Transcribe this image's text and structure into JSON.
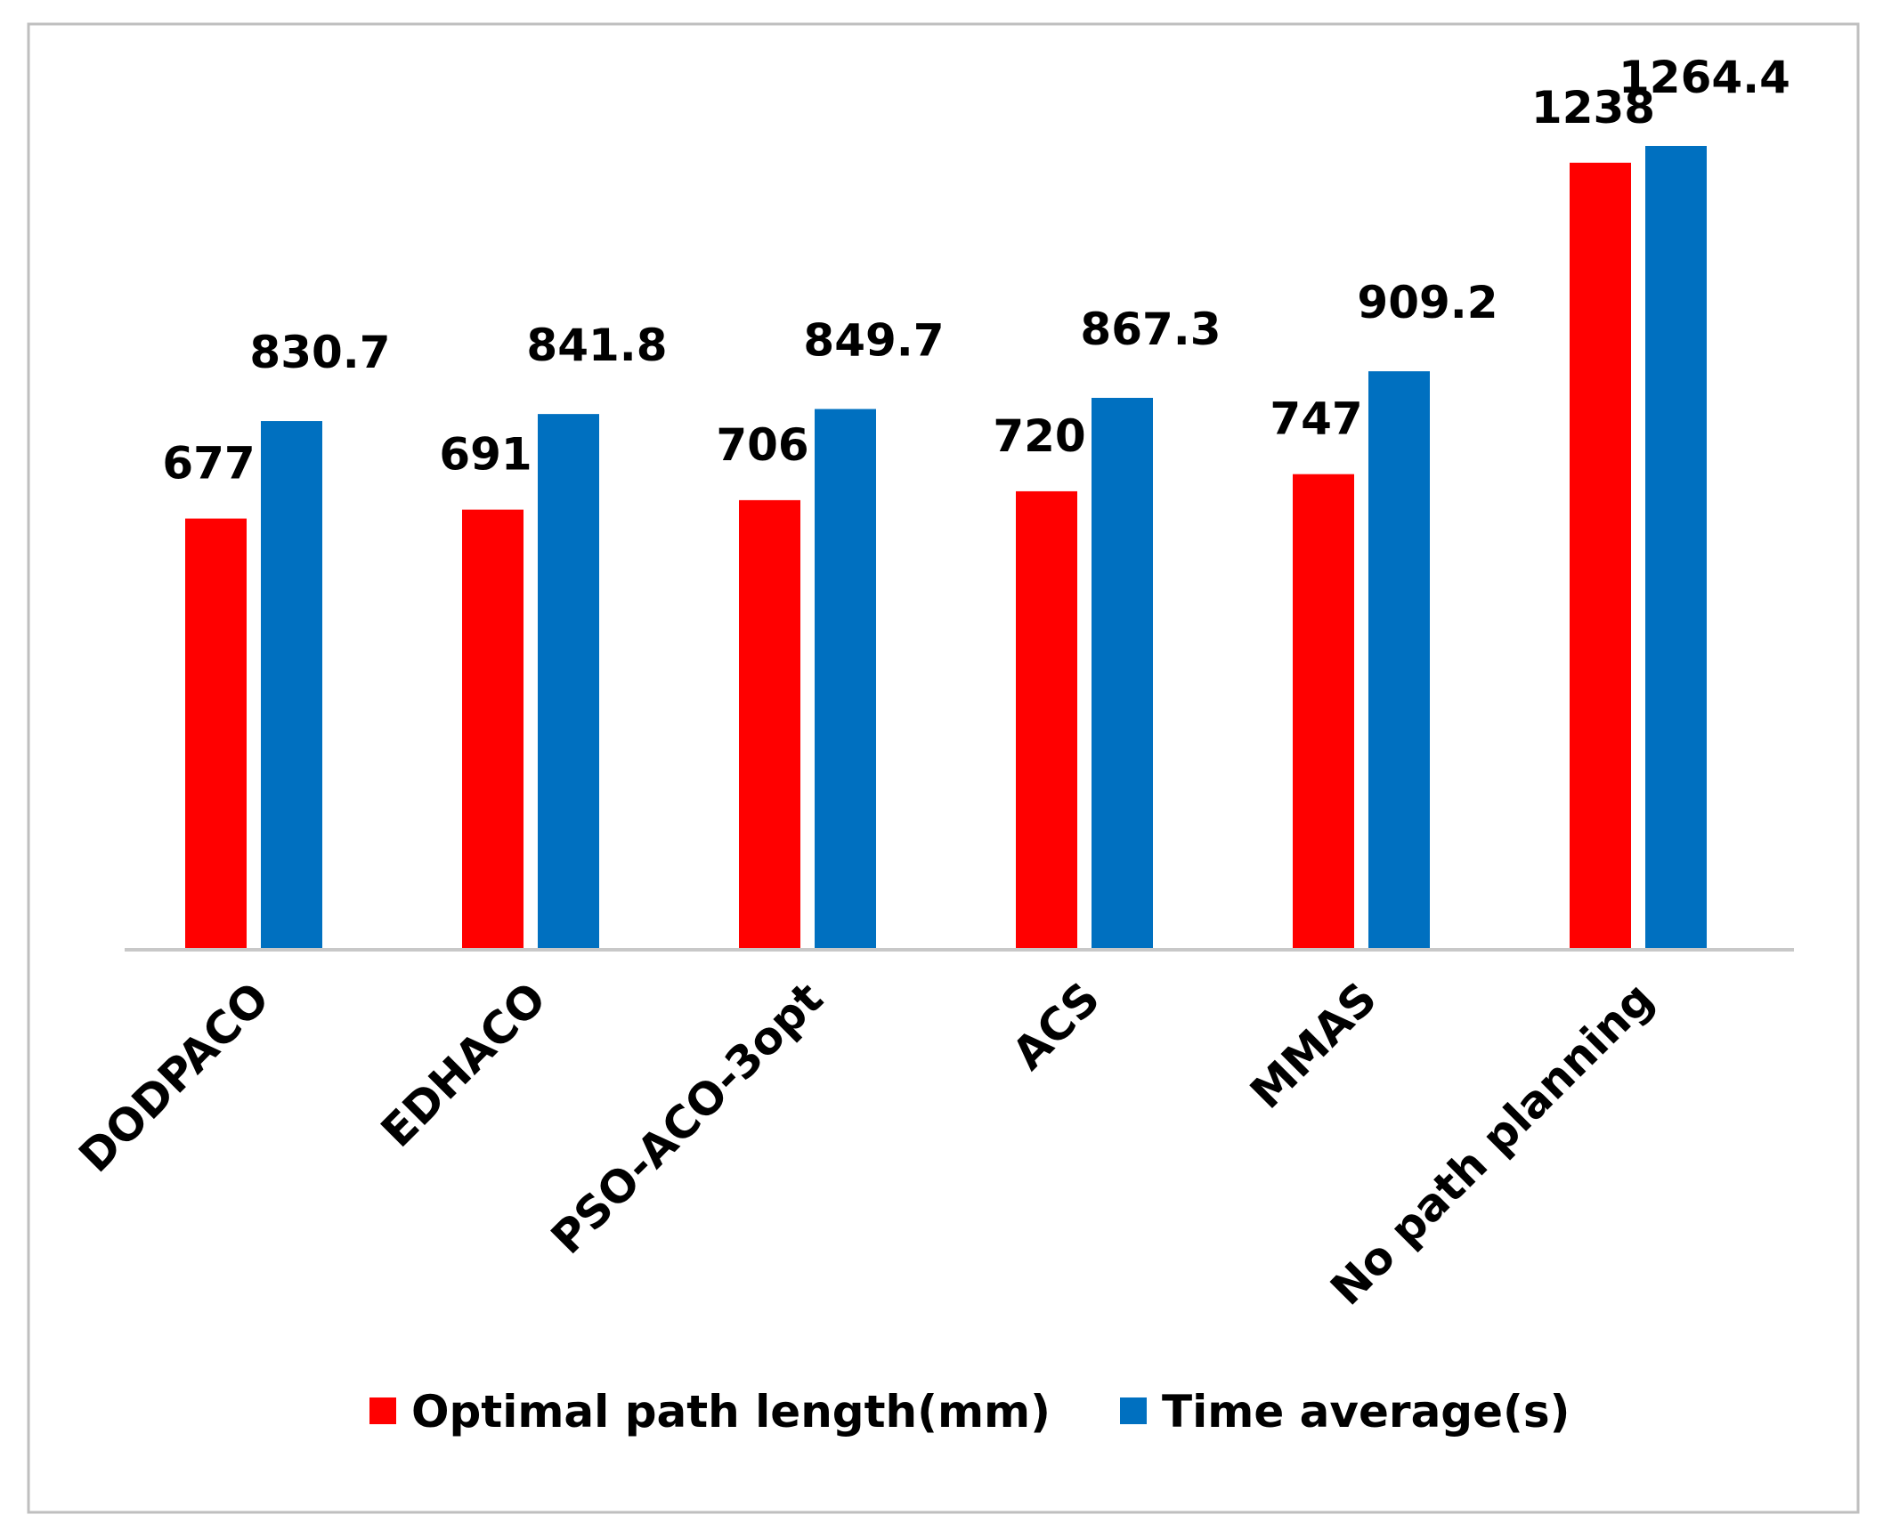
{
  "chart_data": {
    "type": "bar",
    "title": "",
    "xlabel": "",
    "ylabel": "",
    "categories": [
      "DODPACO",
      "EDHACO",
      "PSO-ACO-3opt",
      "ACS",
      "MMAS",
      "No path planning"
    ],
    "series": [
      {
        "name": "Optimal path length(mm)",
        "color": "#ff0000",
        "values": [
          677,
          691,
          706,
          720,
          747,
          1238
        ]
      },
      {
        "name": "Time average(s)",
        "color": "#0070c0",
        "values": [
          830.7,
          841.8,
          849.7,
          867.3,
          909.2,
          1264.4
        ]
      }
    ],
    "value_labels": [
      [
        "677",
        "691",
        "706",
        "720",
        "747",
        "1238"
      ],
      [
        "830.7",
        "841.8",
        "849.7",
        "867.3",
        "909.2",
        "1264.4"
      ]
    ],
    "ylim": [
      0,
      1300
    ],
    "grid": false,
    "legend_position": "bottom"
  }
}
